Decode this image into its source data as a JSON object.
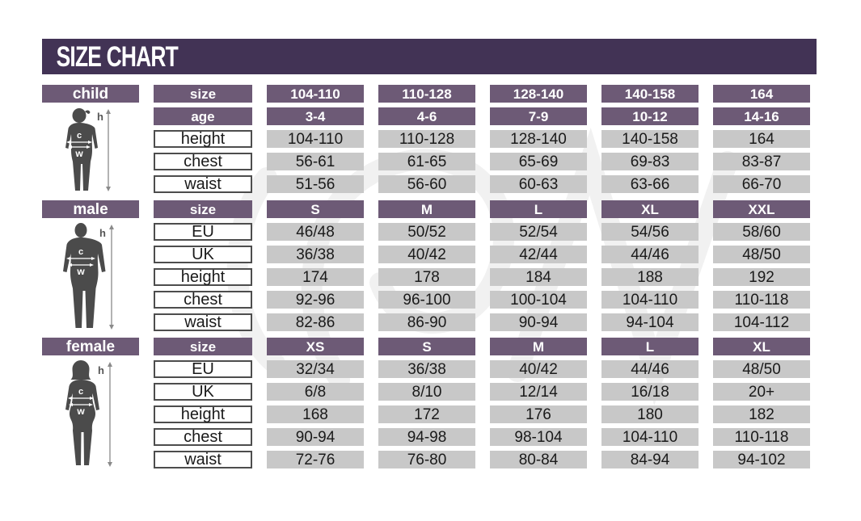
{
  "title": "SIZE CHART",
  "colors": {
    "dark_purple": "#423355",
    "purple": "#6d5a76",
    "gray_cell": "#c8c8c8",
    "silhouette": "#4b4b4b"
  },
  "figure_labels": {
    "height": "h",
    "chest": "c",
    "waist": "w"
  },
  "sections": [
    {
      "id": "child",
      "label": "child",
      "header_row": {
        "label": "size",
        "values": [
          "104-110",
          "110-128",
          "128-140",
          "140-158",
          "164"
        ]
      },
      "subheader_row": {
        "label": "age",
        "values": [
          "3-4",
          "4-6",
          "7-9",
          "10-12",
          "14-16"
        ]
      },
      "rows": [
        {
          "label": "height",
          "values": [
            "104-110",
            "110-128",
            "128-140",
            "140-158",
            "164"
          ]
        },
        {
          "label": "chest",
          "values": [
            "56-61",
            "61-65",
            "65-69",
            "69-83",
            "83-87"
          ]
        },
        {
          "label": "waist",
          "values": [
            "51-56",
            "56-60",
            "60-63",
            "63-66",
            "66-70"
          ]
        }
      ]
    },
    {
      "id": "male",
      "label": "male",
      "header_row": {
        "label": "size",
        "values": [
          "S",
          "M",
          "L",
          "XL",
          "XXL"
        ]
      },
      "rows": [
        {
          "label": "EU",
          "values": [
            "46/48",
            "50/52",
            "52/54",
            "54/56",
            "58/60"
          ]
        },
        {
          "label": "UK",
          "values": [
            "36/38",
            "40/42",
            "42/44",
            "44/46",
            "48/50"
          ]
        },
        {
          "label": "height",
          "values": [
            "174",
            "178",
            "184",
            "188",
            "192"
          ]
        },
        {
          "label": "chest",
          "values": [
            "92-96",
            "96-100",
            "100-104",
            "104-110",
            "110-118"
          ]
        },
        {
          "label": "waist",
          "values": [
            "82-86",
            "86-90",
            "90-94",
            "94-104",
            "104-112"
          ]
        }
      ]
    },
    {
      "id": "female",
      "label": "female",
      "header_row": {
        "label": "size",
        "values": [
          "XS",
          "S",
          "M",
          "L",
          "XL"
        ]
      },
      "rows": [
        {
          "label": "EU",
          "values": [
            "32/34",
            "36/38",
            "40/42",
            "44/46",
            "48/50"
          ]
        },
        {
          "label": "UK",
          "values": [
            "6/8",
            "8/10",
            "12/14",
            "16/18",
            "20+"
          ]
        },
        {
          "label": "height",
          "values": [
            "168",
            "172",
            "176",
            "180",
            "182"
          ]
        },
        {
          "label": "chest",
          "values": [
            "90-94",
            "94-98",
            "98-104",
            "104-110",
            "110-118"
          ]
        },
        {
          "label": "waist",
          "values": [
            "72-76",
            "76-80",
            "80-84",
            "84-94",
            "94-102"
          ]
        }
      ]
    }
  ]
}
